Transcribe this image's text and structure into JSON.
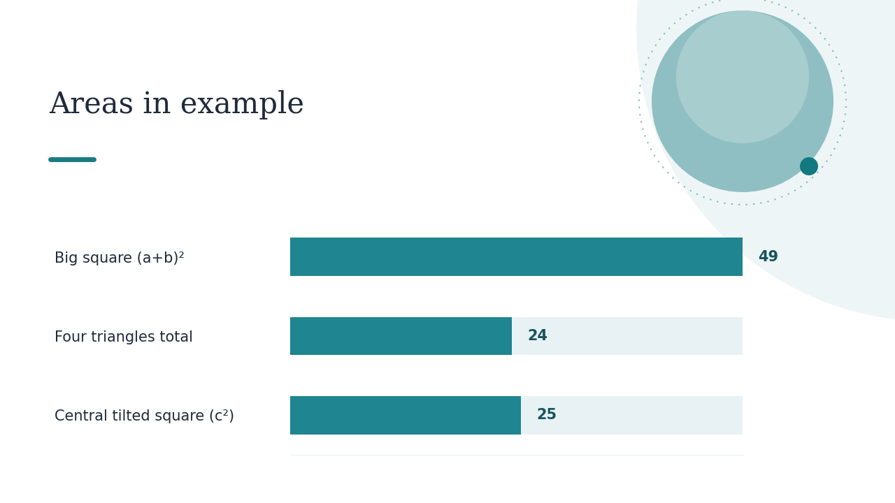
{
  "chart_data": {
    "type": "bar",
    "orientation": "horizontal",
    "title": "Areas in example",
    "categories": [
      "Big square (a+b)²",
      "Four triangles total",
      "Central tilted square (c²)"
    ],
    "values": [
      49,
      24,
      25
    ],
    "color": "#1f8590",
    "xlim": [
      0,
      49
    ],
    "data_labels": true,
    "tick_labels": "y"
  }
}
